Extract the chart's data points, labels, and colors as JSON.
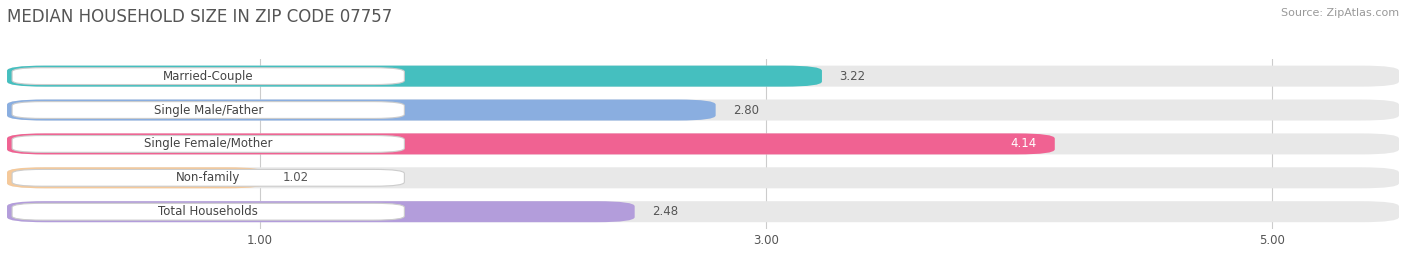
{
  "title": "MEDIAN HOUSEHOLD SIZE IN ZIP CODE 07757",
  "source": "Source: ZipAtlas.com",
  "categories": [
    "Married-Couple",
    "Single Male/Father",
    "Single Female/Mother",
    "Non-family",
    "Total Households"
  ],
  "values": [
    3.22,
    2.8,
    4.14,
    1.02,
    2.48
  ],
  "colors": [
    "#45bfbf",
    "#8aaee0",
    "#f06292",
    "#f5c99a",
    "#b39ddb"
  ],
  "xlim": [
    0.0,
    5.5
  ],
  "xmin": 0.0,
  "xticks": [
    1.0,
    3.0,
    5.0
  ],
  "xtick_labels": [
    "1.00",
    "3.00",
    "5.00"
  ],
  "bar_height": 0.62,
  "label_fontsize": 8.5,
  "value_fontsize": 8.5,
  "title_fontsize": 12,
  "source_fontsize": 8,
  "background_color": "#ffffff",
  "bar_bg_color": "#e8e8e8",
  "label_pill_color": "#ffffff",
  "label_text_color": "#444444",
  "value_color_inside": "#ffffff",
  "value_color_outside": "#555555",
  "value_color_dark_bar": "#555555"
}
